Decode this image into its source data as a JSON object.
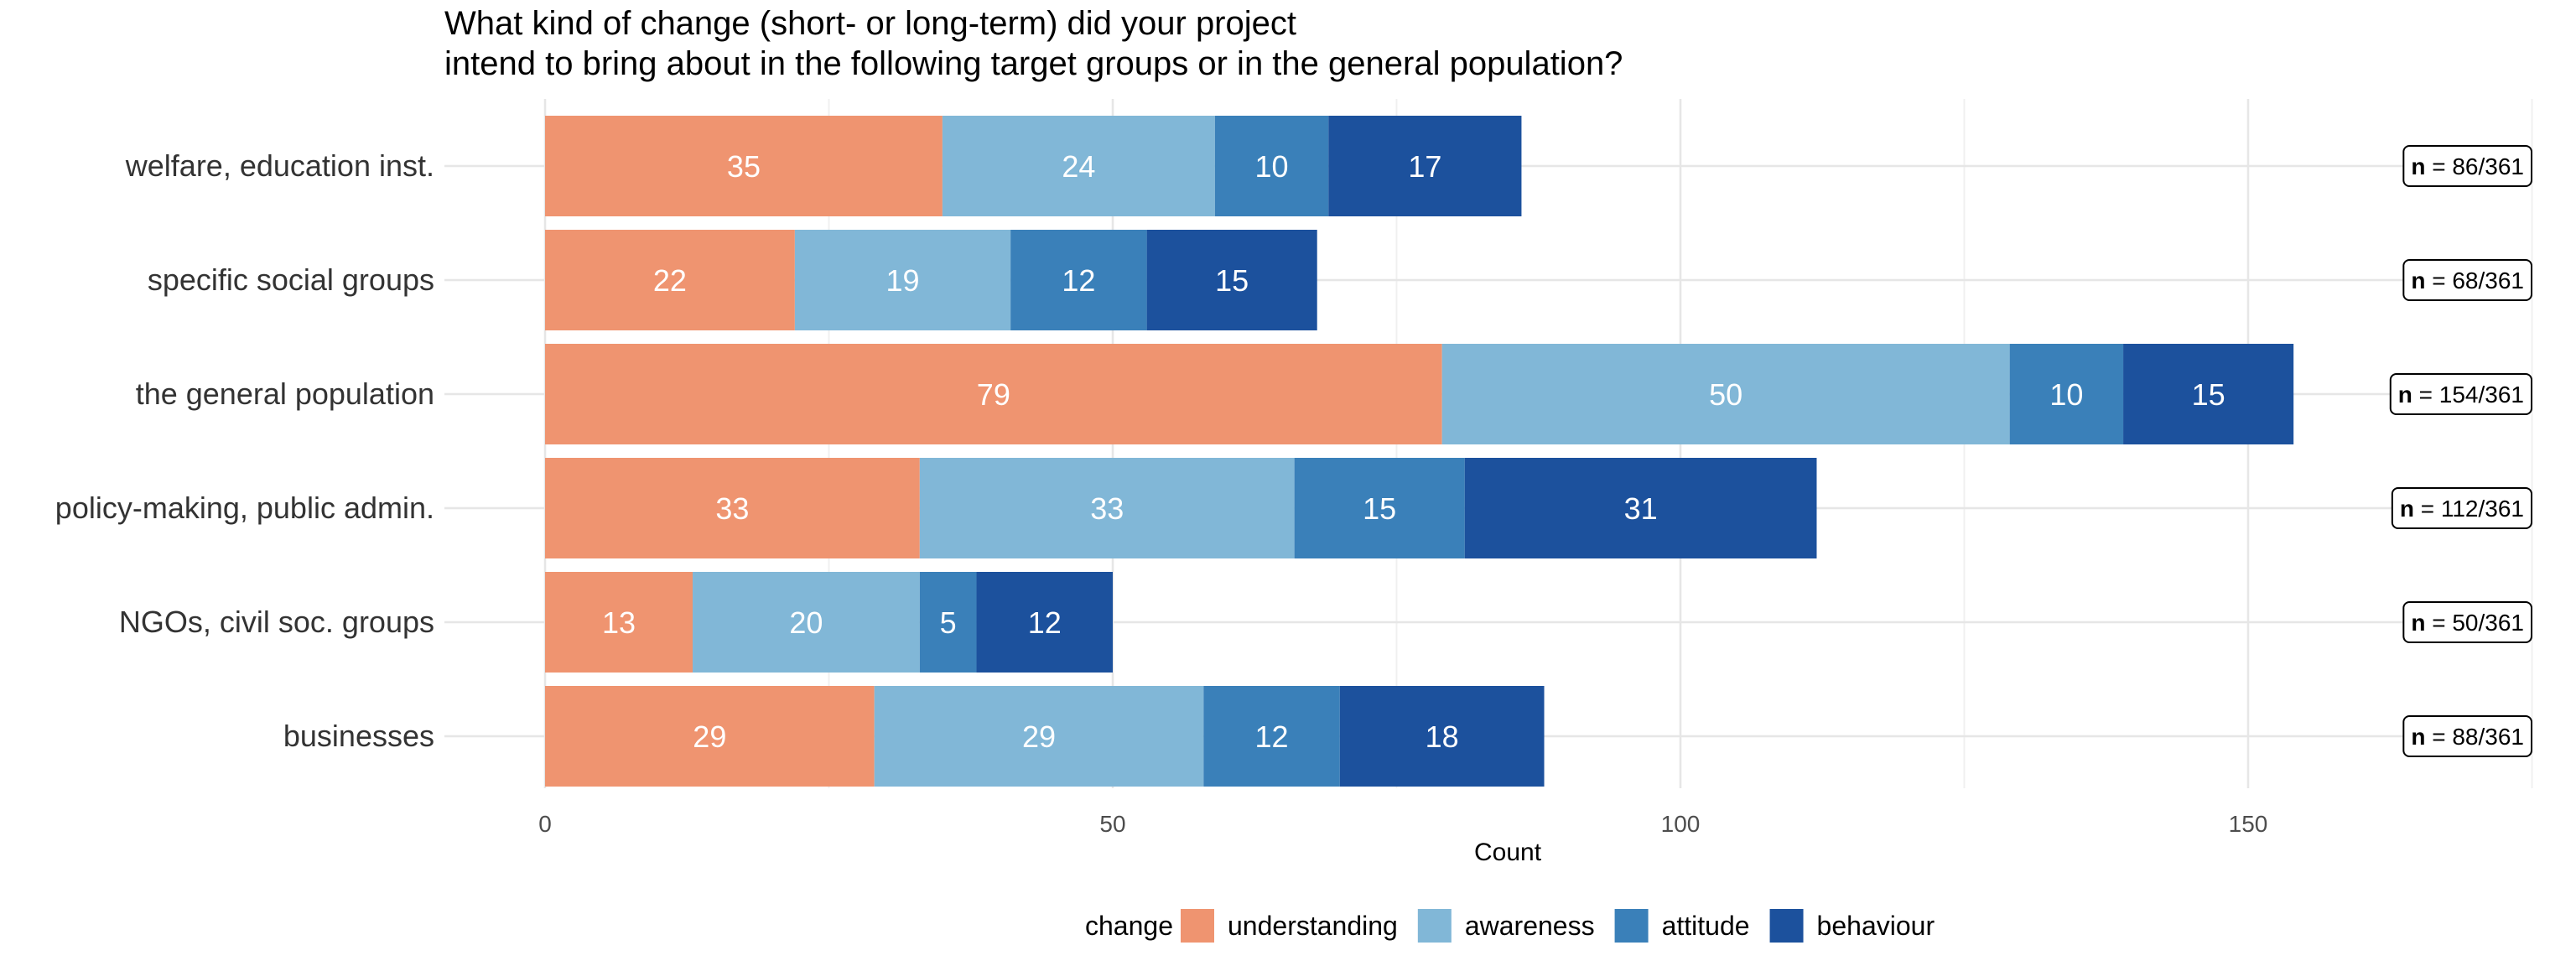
{
  "title_line1": "What kind of change (short- or long-term) did your project",
  "title_line2": "intend to bring about in the following target groups or in the general population?",
  "chart_data": {
    "type": "bar",
    "orientation": "horizontal",
    "stacked": true,
    "categories": [
      "welfare, education inst.",
      "specific social groups",
      "the general population",
      "policy-making, public admin.",
      "NGOs, civil soc. groups",
      "businesses"
    ],
    "series": [
      {
        "name": "understanding",
        "color": "#EF9470",
        "values": [
          35,
          22,
          79,
          33,
          13,
          29
        ]
      },
      {
        "name": "awareness",
        "color": "#81B7D7",
        "values": [
          24,
          19,
          50,
          33,
          20,
          29
        ]
      },
      {
        "name": "attitude",
        "color": "#3A80B9",
        "values": [
          10,
          12,
          10,
          15,
          5,
          12
        ]
      },
      {
        "name": "behaviour",
        "color": "#1C519D",
        "values": [
          17,
          15,
          15,
          31,
          12,
          18
        ]
      }
    ],
    "n_labels": [
      "86/361",
      "68/361",
      "154/361",
      "112/361",
      "50/361",
      "88/361"
    ],
    "n_prefix": "n",
    "n_sep": " = ",
    "xlabel": "Count",
    "ylabel": "",
    "xlim": [
      0,
      175
    ],
    "xticks": [
      0,
      50,
      100,
      150
    ],
    "grid": true,
    "legend_title": "change",
    "legend_position": "bottom"
  }
}
